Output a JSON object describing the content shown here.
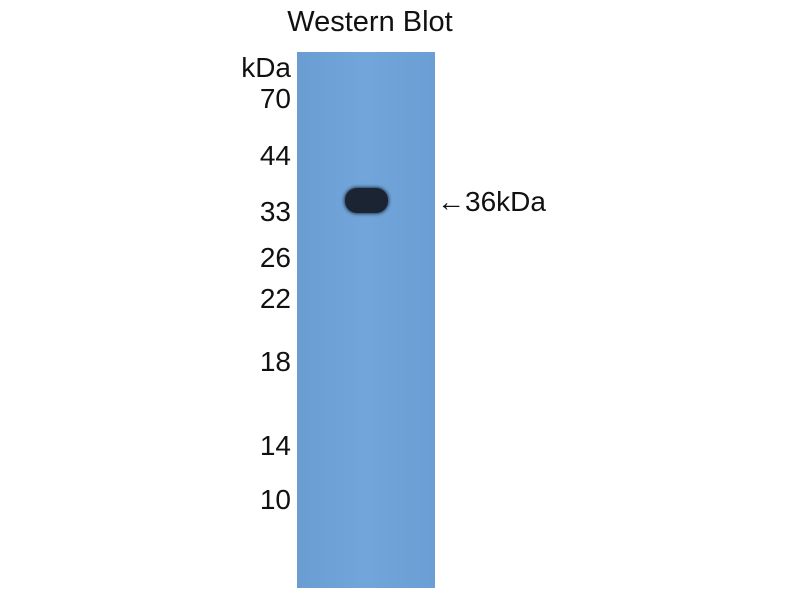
{
  "title": "Western Blot",
  "unit_label": "kDa",
  "markers": [
    "70",
    "44",
    "33",
    "26",
    "22",
    "18",
    "14",
    "10"
  ],
  "band_annotation": "←36kDa",
  "colors": {
    "membrane": "#6ea2d6",
    "band": "#1a2433"
  }
}
